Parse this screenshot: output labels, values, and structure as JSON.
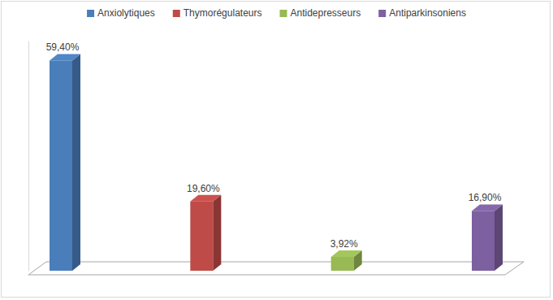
{
  "chart_data": {
    "type": "bar",
    "categories": [
      "Anxiolytiques",
      "Thymorégulateurs",
      "Antidepresseurs",
      "Antiparkinsoniens"
    ],
    "values": [
      59.4,
      19.6,
      3.92,
      16.9
    ],
    "value_labels": [
      "59,40%",
      "19,60%",
      "3,92%",
      "16,90%"
    ],
    "colors": [
      "#4a7ebb",
      "#be4b48",
      "#98b954",
      "#7d60a0"
    ],
    "ylim": [
      0,
      65
    ],
    "yticks": [],
    "data_labels": true,
    "tick_labels": false,
    "legend": "top",
    "grid": false
  }
}
